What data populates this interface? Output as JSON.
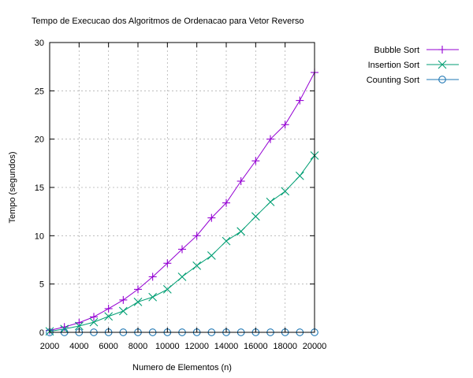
{
  "chart_data": {
    "type": "line",
    "title": "Tempo de Execucao dos Algoritmos de Ordenacao para Vetor Reverso",
    "xlabel": "Numero de Elementos (n)",
    "ylabel": "Tempo (segundos)",
    "xlim": [
      2000,
      20000
    ],
    "ylim": [
      0,
      30
    ],
    "xticks": [
      2000,
      4000,
      6000,
      8000,
      10000,
      12000,
      14000,
      16000,
      18000,
      20000
    ],
    "yticks": [
      0,
      5,
      10,
      15,
      20,
      25,
      30
    ],
    "grid": true,
    "legend_position": "top-right, outside plot",
    "x": [
      2000,
      3000,
      4000,
      5000,
      6000,
      7000,
      8000,
      9000,
      10000,
      11000,
      12000,
      13000,
      14000,
      15000,
      16000,
      17000,
      18000,
      19000,
      20000
    ],
    "series": [
      {
        "name": "Bubble Sort",
        "marker": "plus",
        "color": "#9400d3",
        "values": [
          0.2,
          0.55,
          1.0,
          1.6,
          2.45,
          3.35,
          4.45,
          5.75,
          7.15,
          8.6,
          10.0,
          11.85,
          13.4,
          15.65,
          17.75,
          20.0,
          21.5,
          24.0,
          26.9
        ]
      },
      {
        "name": "Insertion Sort",
        "marker": "cross",
        "color": "#009e73",
        "values": [
          0.1,
          0.35,
          0.65,
          1.05,
          1.65,
          2.2,
          3.15,
          3.65,
          4.45,
          5.75,
          6.9,
          7.95,
          9.45,
          10.45,
          12.0,
          13.5,
          14.6,
          16.2,
          18.3
        ]
      },
      {
        "name": "Counting Sort",
        "marker": "circle",
        "color": "#1f77b4",
        "values": [
          0,
          0,
          0,
          0,
          0,
          0,
          0,
          0,
          0,
          0,
          0,
          0,
          0,
          0,
          0,
          0,
          0,
          0,
          0
        ]
      }
    ]
  }
}
